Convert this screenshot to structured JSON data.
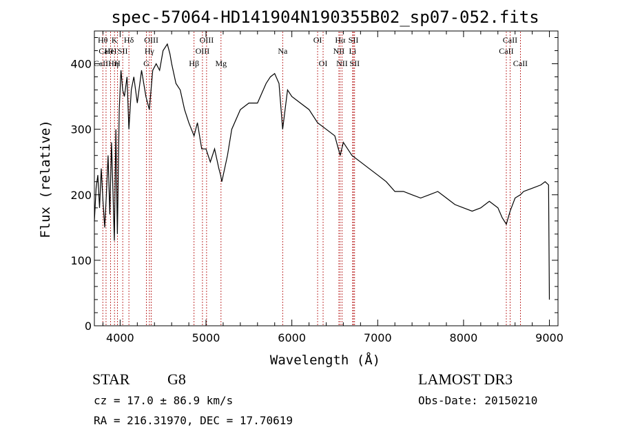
{
  "chart_data": {
    "type": "line",
    "title": "spec-57064-HD141904N190355B02_sp07-052.fits",
    "xlabel": "Wavelength (Å)",
    "ylabel": "Flux (relative)",
    "xlim": [
      3700,
      9100
    ],
    "ylim": [
      0,
      450
    ],
    "x_ticks": [
      4000,
      5000,
      6000,
      7000,
      8000,
      9000
    ],
    "y_ticks": [
      0,
      100,
      200,
      300,
      400
    ],
    "grid": false,
    "series": [
      {
        "x": [
          3700,
          3720,
          3740,
          3760,
          3780,
          3800,
          3820,
          3840,
          3860,
          3880,
          3900,
          3920,
          3933,
          3950,
          3968,
          3990,
          4010,
          4030,
          4050,
          4080,
          4102,
          4130,
          4160,
          4200,
          4250,
          4300,
          4340,
          4380,
          4420,
          4460,
          4500,
          4550,
          4580,
          4600,
          4650,
          4700,
          4750,
          4800,
          4861,
          4900,
          4950,
          5000,
          5050,
          5100,
          5150,
          5170,
          5184,
          5250,
          5300,
          5400,
          5500,
          5600,
          5700,
          5750,
          5800,
          5850,
          5893,
          5950,
          6000,
          6100,
          6200,
          6300,
          6400,
          6500,
          6563,
          6600,
          6700,
          6800,
          6900,
          7000,
          7100,
          7200,
          7300,
          7400,
          7500,
          7600,
          7700,
          7800,
          7900,
          8000,
          8100,
          8200,
          8300,
          8400,
          8450,
          8498,
          8542,
          8600,
          8662,
          8700,
          8800,
          8900,
          8950,
          8990,
          9000
        ],
        "y": [
          160,
          210,
          230,
          180,
          240,
          190,
          150,
          200,
          260,
          170,
          280,
          190,
          130,
          300,
          140,
          330,
          390,
          360,
          350,
          380,
          300,
          360,
          380,
          340,
          390,
          350,
          330,
          390,
          400,
          390,
          420,
          430,
          415,
          400,
          370,
          360,
          330,
          310,
          290,
          310,
          270,
          270,
          250,
          270,
          240,
          230,
          220,
          260,
          300,
          330,
          340,
          340,
          370,
          380,
          385,
          370,
          300,
          360,
          350,
          340,
          330,
          310,
          300,
          290,
          260,
          280,
          260,
          250,
          240,
          230,
          220,
          205,
          205,
          200,
          195,
          200,
          205,
          195,
          185,
          180,
          175,
          180,
          190,
          180,
          165,
          155,
          175,
          195,
          200,
          205,
          210,
          215,
          220,
          215,
          40
        ]
      }
    ],
    "line_annotations": [
      {
        "label": "Hθ",
        "x": 3798,
        "row": 1
      },
      {
        "label": "CaII",
        "x": 3836,
        "row": 2
      },
      {
        "label": "CaIIHη",
        "x": 3836,
        "row": 3
      },
      {
        "label": "K",
        "x": 3934,
        "row": 1
      },
      {
        "label": "HeI",
        "x": 3889,
        "row": 2
      },
      {
        "label": "H",
        "x": 3968,
        "row": 3
      },
      {
        "label": "SII",
        "x": 4030,
        "row": 2
      },
      {
        "label": "Hδ",
        "x": 4102,
        "row": 1
      },
      {
        "label": "OIII",
        "x": 4363,
        "row": 1
      },
      {
        "label": "Hγ",
        "x": 4341,
        "row": 2
      },
      {
        "label": "G",
        "x": 4305,
        "row": 3
      },
      {
        "label": "OIII",
        "x": 5007,
        "row": 1
      },
      {
        "label": "OIII",
        "x": 4959,
        "row": 2
      },
      {
        "label": "Hβ",
        "x": 4861,
        "row": 3
      },
      {
        "label": "Mg",
        "x": 5175,
        "row": 3
      },
      {
        "label": "Na",
        "x": 5893,
        "row": 2
      },
      {
        "label": "OI",
        "x": 6300,
        "row": 1
      },
      {
        "label": "OI",
        "x": 6364,
        "row": 3
      },
      {
        "label": "Hα",
        "x": 6563,
        "row": 1
      },
      {
        "label": "SII",
        "x": 6717,
        "row": 1
      },
      {
        "label": "NII",
        "x": 6548,
        "row": 2
      },
      {
        "label": "Li",
        "x": 6708,
        "row": 2
      },
      {
        "label": "NII",
        "x": 6584,
        "row": 3
      },
      {
        "label": "SII",
        "x": 6731,
        "row": 3
      },
      {
        "label": "CaII",
        "x": 8542,
        "row": 1
      },
      {
        "label": "CaII",
        "x": 8498,
        "row": 2
      },
      {
        "label": "CaII",
        "x": 8662,
        "row": 3
      }
    ],
    "line_positions": [
      3798,
      3836,
      3889,
      3934,
      3968,
      4030,
      4102,
      4305,
      4341,
      4363,
      4861,
      4959,
      5007,
      5175,
      5893,
      6300,
      6364,
      6548,
      6563,
      6584,
      6708,
      6717,
      6731,
      8498,
      8542,
      8662
    ],
    "line_color": "#b00000"
  },
  "info": {
    "object_class": "STAR",
    "subclass": "G8",
    "survey": "LAMOST DR3",
    "redshift": "cz = 17.0 ± 86.9 km/s",
    "obs_date": "Obs-Date: 20150210",
    "coords": "RA = 216.31970, DEC =  17.70619"
  }
}
